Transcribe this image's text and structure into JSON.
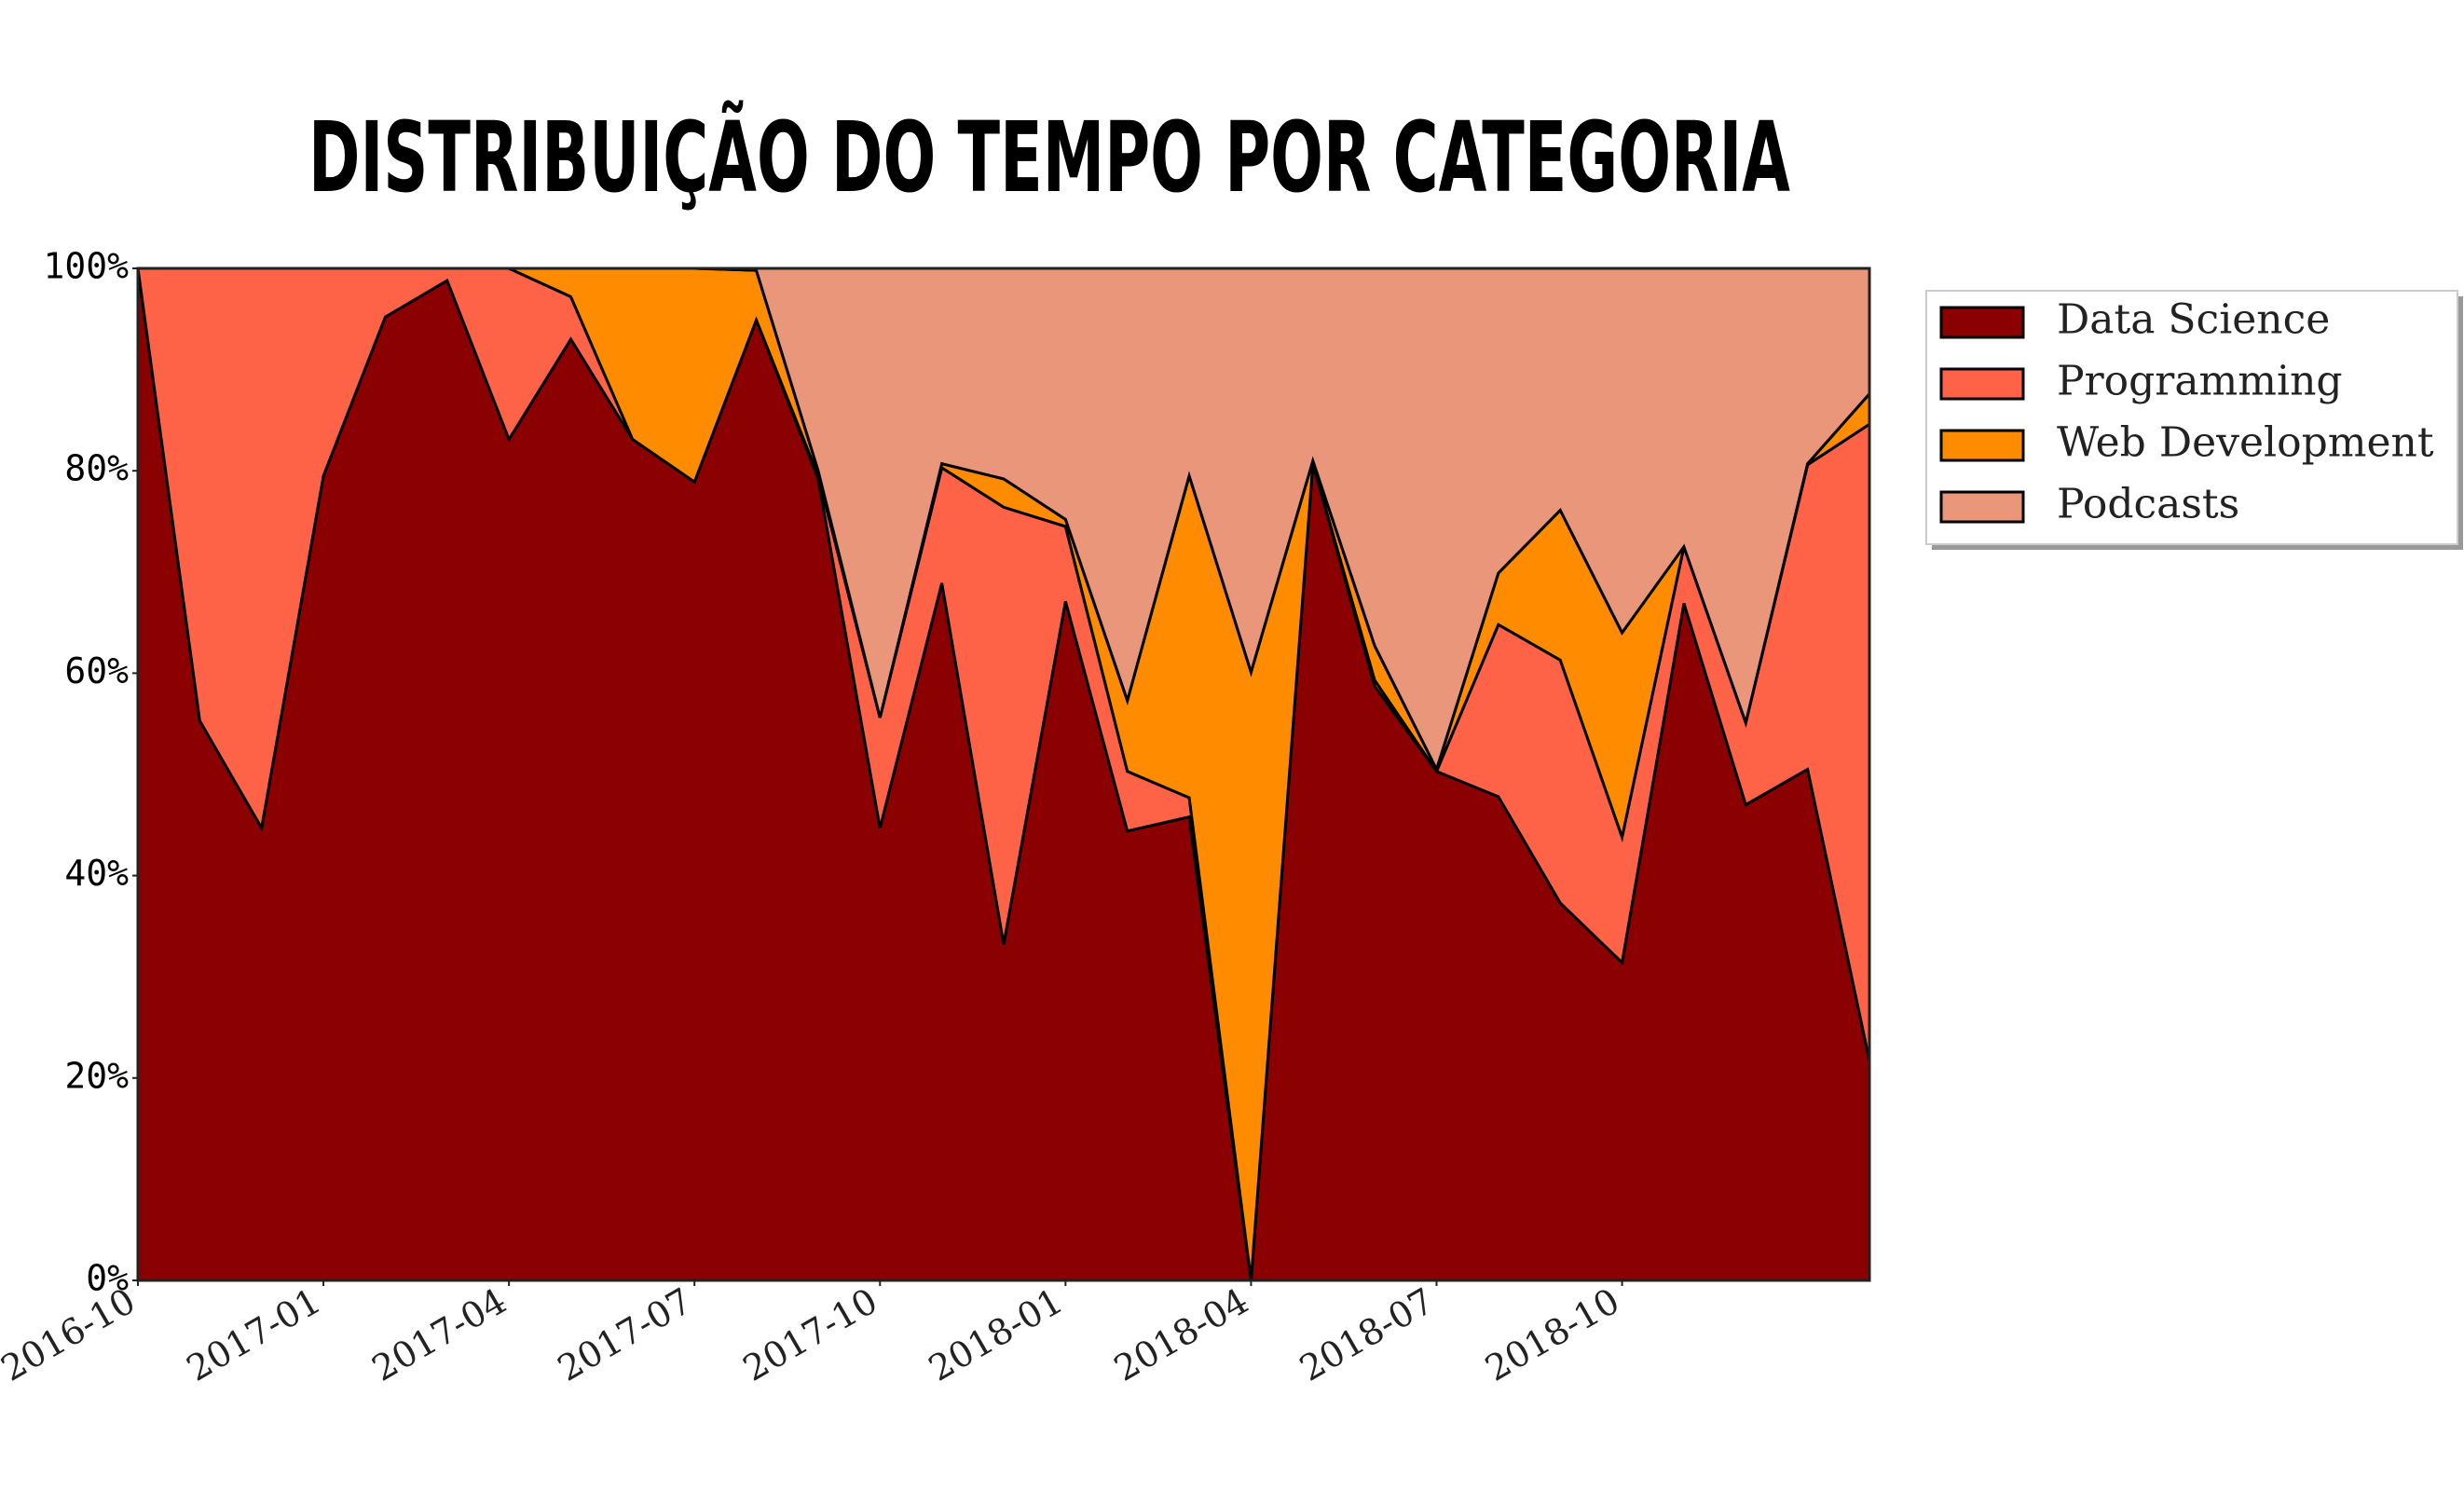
{
  "chart_data": {
    "type": "stacked_area",
    "title": "DISTRIBUIÇÃO DO TEMPO POR CATEGORIA",
    "x": [
      "2016-10",
      "2016-11",
      "2016-12",
      "2017-01",
      "2017-02",
      "2017-03",
      "2017-04",
      "2017-05",
      "2017-06",
      "2017-07",
      "2017-08",
      "2017-09",
      "2017-10",
      "2017-11",
      "2017-12",
      "2018-01",
      "2018-02",
      "2018-03",
      "2018-04",
      "2018-05",
      "2018-06",
      "2018-07",
      "2018-08",
      "2018-09",
      "2018-10",
      "2018-11",
      "2018-12",
      "2019-01",
      "2019-02"
    ],
    "xlim": [
      "2016-10",
      "2019-02"
    ],
    "xticks": [
      "2016-10",
      "2017-01",
      "2017-04",
      "2017-07",
      "2017-10",
      "2018-01",
      "2018-04",
      "2018-07",
      "2018-10"
    ],
    "ylim": [
      0,
      100
    ],
    "yticks": [
      {
        "value": 0,
        "label": "0%"
      },
      {
        "value": 20,
        "label": "20%"
      },
      {
        "value": 40,
        "label": "40%"
      },
      {
        "value": 60,
        "label": "60%"
      },
      {
        "value": 80,
        "label": "80%"
      },
      {
        "value": 100,
        "label": "100%"
      }
    ],
    "legend": "outside right",
    "series": [
      {
        "name": "Data Science",
        "color": "#8b0000",
        "values": [
          100,
          55.3,
          44.7,
          79.5,
          95.2,
          98.8,
          83.1,
          93.0,
          83.1,
          78.9,
          94.9,
          79.2,
          44.7,
          68.9,
          33.2,
          67.1,
          44.4,
          45.8,
          0,
          80.7,
          58.7,
          50.3,
          47.8,
          37.3,
          31.4,
          66.9,
          47.0,
          50.5,
          21.7
        ]
      },
      {
        "name": "Programming",
        "color": "#ff6347",
        "values": [
          0,
          44.7,
          55.3,
          20.5,
          4.8,
          1.2,
          16.9,
          4.2,
          0,
          0,
          0,
          0.3,
          10.9,
          11.4,
          43.2,
          7.4,
          5.9,
          1.9,
          0,
          0,
          0.6,
          0,
          17.0,
          24.0,
          12.4,
          5.6,
          8.1,
          30.1,
          62.9
        ]
      },
      {
        "name": "Web Development",
        "color": "#ff8c00",
        "values": [
          0,
          0,
          0,
          0,
          0,
          0,
          0,
          2.8,
          16.9,
          21.1,
          4.9,
          0.5,
          0,
          0.4,
          2.8,
          0.7,
          7.0,
          31.8,
          60.1,
          0.3,
          3.4,
          0.2,
          5.1,
          14.8,
          20.2,
          0,
          0,
          0.1,
          3.0
        ]
      },
      {
        "name": "Podcasts",
        "color": "#e9967a",
        "values": [
          0,
          0,
          0,
          0,
          0,
          0,
          0,
          0,
          0,
          0,
          0.2,
          20.0,
          44.4,
          19.3,
          20.8,
          24.8,
          42.7,
          20.5,
          39.9,
          19.0,
          37.3,
          49.5,
          30.1,
          23.9,
          36.0,
          27.5,
          44.9,
          19.3,
          12.4
        ]
      }
    ]
  }
}
